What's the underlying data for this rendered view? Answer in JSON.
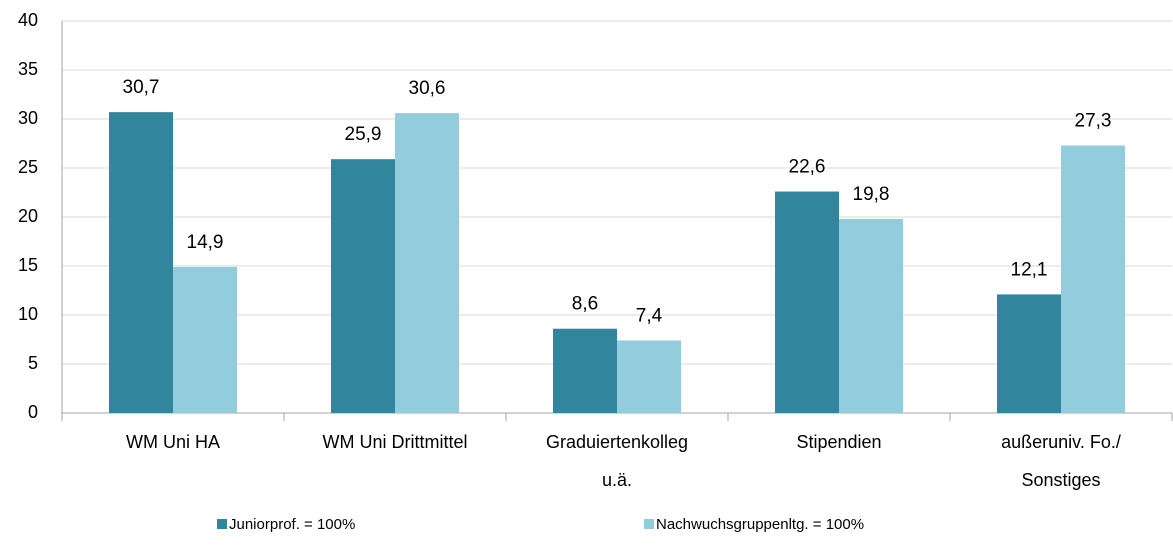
{
  "chart_data": {
    "type": "bar",
    "categories": [
      [
        "WM Uni HA"
      ],
      [
        "WM Uni Drittmittel"
      ],
      [
        "Graduiertenkolleg",
        "u.ä."
      ],
      [
        "Stipendien"
      ],
      [
        "außeruniv. Fo./",
        "Sonstiges"
      ]
    ],
    "series": [
      {
        "name": "Juniorprof. = 100%",
        "color": "#31859c",
        "values": [
          30.7,
          25.9,
          8.6,
          22.6,
          12.1
        ],
        "value_labels": [
          "30,7",
          "25,9",
          "8,6",
          "22,6",
          "12,1"
        ]
      },
      {
        "name": "Nachwuchsgruppenltg. = 100%",
        "color": "#93cddd",
        "values": [
          14.9,
          30.6,
          7.4,
          19.8,
          27.3
        ],
        "value_labels": [
          "14,9",
          "30,6",
          "7,4",
          "19,8",
          "27,3"
        ]
      }
    ],
    "ylim": [
      0,
      40
    ],
    "yticks": [
      0,
      5,
      10,
      15,
      20,
      25,
      30,
      35,
      40
    ],
    "grid": true
  }
}
